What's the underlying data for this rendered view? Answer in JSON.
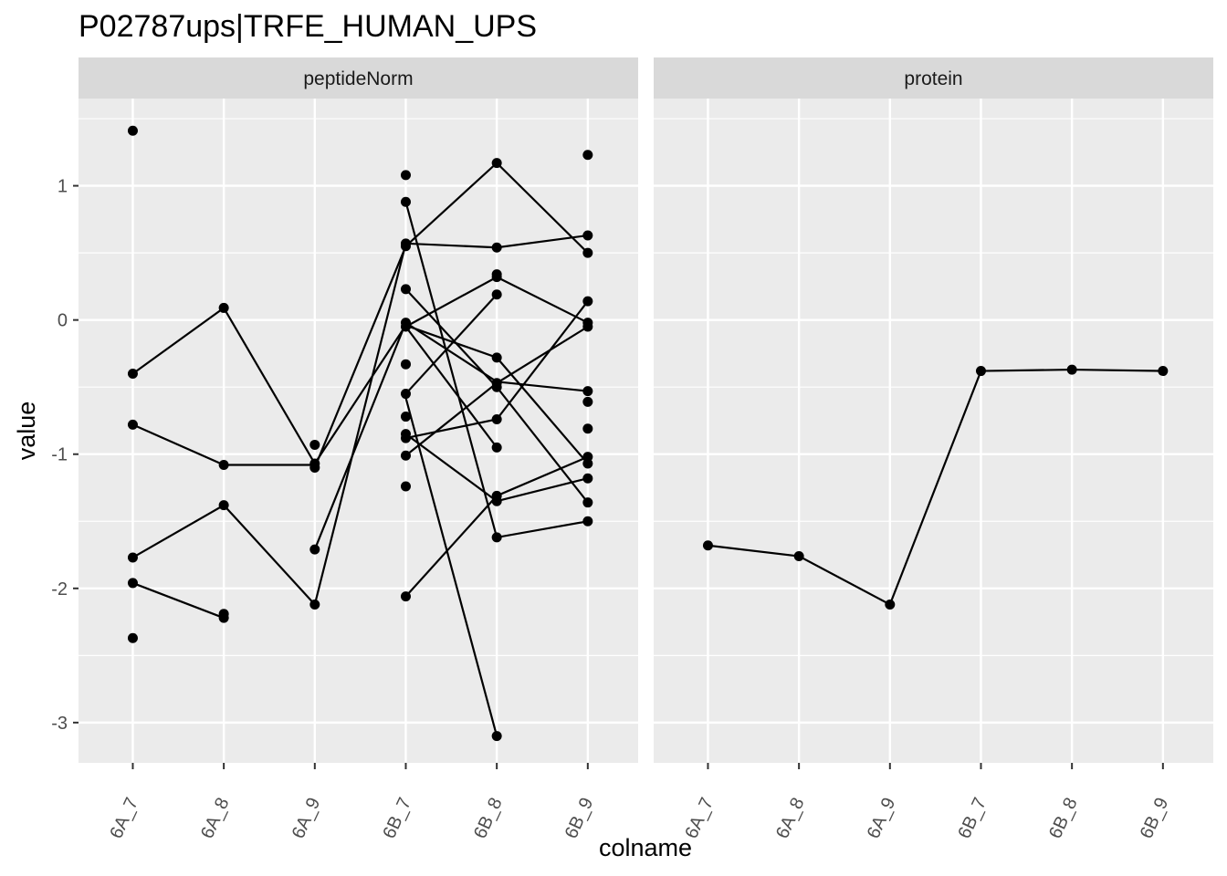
{
  "chart_data": {
    "type": "line",
    "title": "P02787ups|TRFE_HUMAN_UPS",
    "xlabel": "colname",
    "ylabel": "value",
    "categories": [
      "6A_7",
      "6A_8",
      "6A_9",
      "6B_7",
      "6B_8",
      "6B_9"
    ],
    "ylim": [
      -3.3,
      1.65
    ],
    "yticks": [
      1,
      0,
      -1,
      -2,
      -3
    ],
    "ytick_labels": [
      "1",
      "0",
      "-1",
      "-2",
      "-3"
    ],
    "grid": true,
    "legend": "none",
    "panels": [
      {
        "label": "peptideNorm",
        "series": [
          {
            "values": [
              -0.4,
              0.09,
              -1.07,
              -0.04,
              -0.28,
              -1.07
            ]
          },
          {
            "values": [
              -0.78,
              -1.08,
              -1.08,
              null,
              null,
              null
            ]
          },
          {
            "values": [
              -1.77,
              -1.38,
              -2.12,
              null,
              null,
              null
            ]
          },
          {
            "values": [
              -1.96,
              -2.22,
              null,
              null,
              null,
              null
            ]
          },
          {
            "values": [
              null,
              null,
              -1.1,
              0.55,
              1.17,
              0.5
            ]
          },
          {
            "values": [
              null,
              null,
              -2.12,
              0.57,
              0.54,
              0.63
            ]
          },
          {
            "values": [
              null,
              null,
              -1.71,
              -0.02,
              -0.46,
              -0.53
            ]
          },
          {
            "values": [
              null,
              null,
              null,
              0.88,
              -1.62,
              -1.5
            ]
          },
          {
            "values": [
              null,
              null,
              null,
              0.23,
              -0.5,
              -1.36
            ]
          },
          {
            "values": [
              null,
              null,
              null,
              -0.55,
              0.19,
              null
            ]
          },
          {
            "values": [
              null,
              null,
              null,
              -0.05,
              0.32,
              -0.02
            ]
          },
          {
            "values": [
              null,
              null,
              null,
              -0.58,
              -3.1,
              null
            ]
          },
          {
            "values": [
              null,
              null,
              null,
              -0.88,
              -0.74,
              0.14
            ]
          },
          {
            "values": [
              null,
              null,
              null,
              -1.01,
              -0.47,
              -0.05
            ]
          },
          {
            "values": [
              null,
              null,
              null,
              -2.06,
              -1.31,
              -1.02
            ]
          },
          {
            "values": [
              null,
              null,
              null,
              -0.85,
              -1.35,
              -1.18
            ]
          },
          {
            "values": [
              null,
              null,
              null,
              -0.05,
              -0.95,
              null
            ]
          }
        ],
        "points": [
          {
            "x": "6A_7",
            "values": [
              1.41,
              -0.4,
              -0.78,
              -1.77,
              -1.96,
              -2.37
            ]
          },
          {
            "x": "6A_8",
            "values": [
              0.09,
              -1.08,
              -1.38,
              -2.19,
              -2.22
            ]
          },
          {
            "x": "6A_9",
            "values": [
              -0.93,
              -1.07,
              -1.1,
              -1.71,
              -2.12
            ]
          },
          {
            "x": "6B_7",
            "values": [
              1.08,
              0.88,
              0.57,
              0.55,
              0.23,
              -0.02,
              -0.05,
              -0.33,
              -0.55,
              -0.72,
              -0.85,
              -0.88,
              -1.01,
              -1.24,
              -2.06
            ]
          },
          {
            "x": "6B_8",
            "values": [
              1.17,
              0.54,
              0.34,
              0.32,
              0.19,
              -0.28,
              -0.47,
              -0.5,
              -0.74,
              -0.95,
              -1.31,
              -1.35,
              -1.62,
              -3.1
            ]
          },
          {
            "x": "6B_9",
            "values": [
              1.23,
              0.63,
              0.5,
              0.14,
              -0.02,
              -0.05,
              -0.53,
              -0.61,
              -0.81,
              -1.02,
              -1.07,
              -1.18,
              -1.36,
              -1.5
            ]
          }
        ]
      },
      {
        "label": "protein",
        "series": [
          {
            "values": [
              -1.68,
              -1.76,
              -2.12,
              -0.38,
              -0.37,
              -0.38
            ]
          }
        ],
        "points": [
          {
            "x": "6A_7",
            "values": [
              -1.68
            ]
          },
          {
            "x": "6A_8",
            "values": [
              -1.76
            ]
          },
          {
            "x": "6A_9",
            "values": [
              -2.12
            ]
          },
          {
            "x": "6B_7",
            "values": [
              -0.38
            ]
          },
          {
            "x": "6B_8",
            "values": [
              -0.37
            ]
          },
          {
            "x": "6B_9",
            "values": [
              -0.38
            ]
          }
        ]
      }
    ],
    "colors": {
      "panel_background": "#ebebeb",
      "strip_background": "#d9d9d9",
      "grid": "#ffffff",
      "series": "#000000",
      "tick_label": "#4d4d4d"
    }
  }
}
